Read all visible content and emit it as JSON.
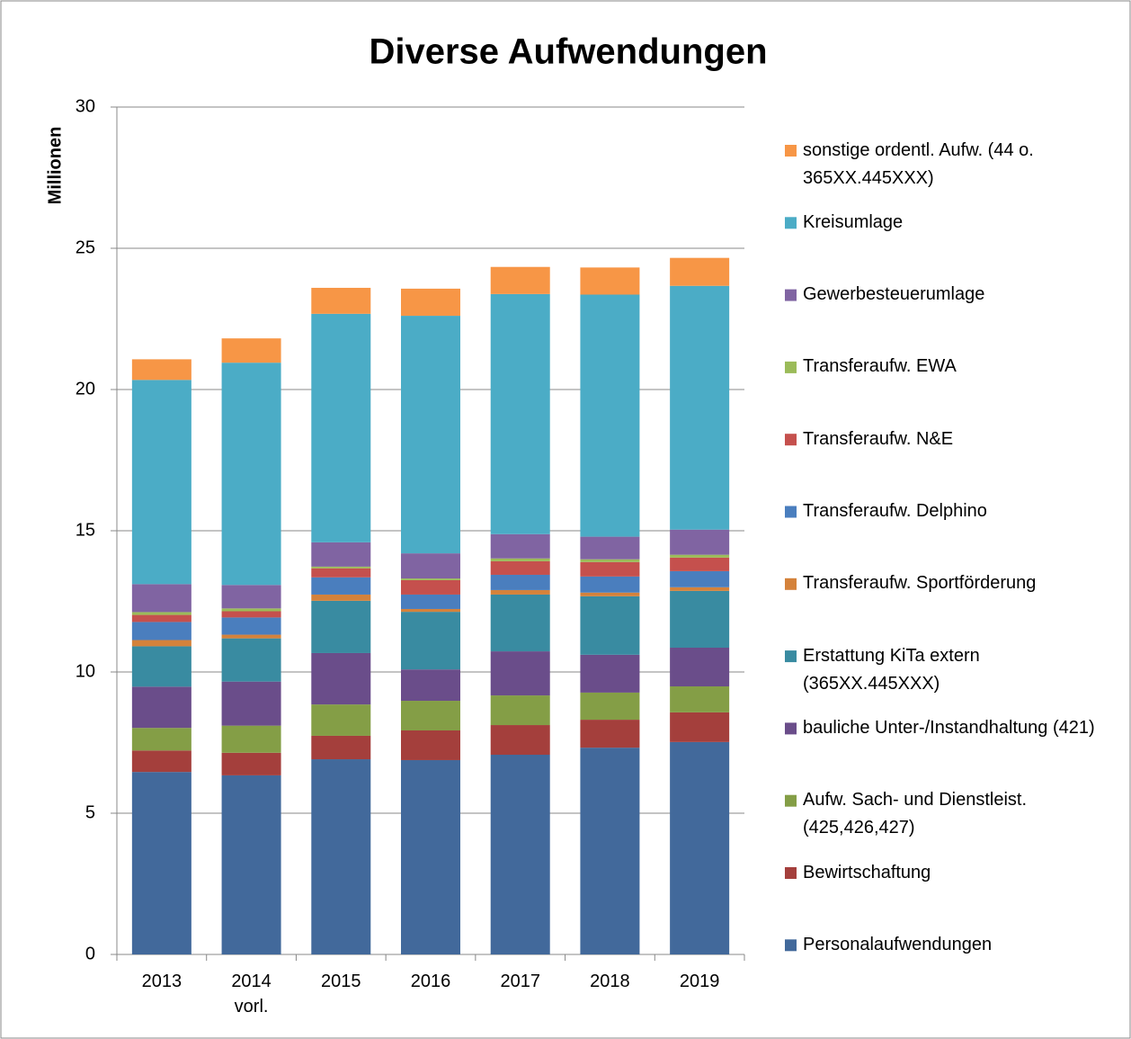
{
  "chart_data": {
    "type": "stacked_bar",
    "title": "Diverse Aufwendungen",
    "y_label": "Millionen",
    "categories": [
      "2013",
      "2014 vorl.",
      "2015",
      "2016",
      "2017",
      "2018",
      "2019"
    ],
    "ylim": [
      0,
      30
    ],
    "yticks": [
      0,
      5,
      10,
      15,
      20,
      25,
      30
    ],
    "grid": true,
    "legend": "right",
    "series": [
      {
        "name": "Personalaufwendungen",
        "color": "#42699b",
        "values": [
          6.46,
          6.34,
          6.91,
          6.88,
          7.07,
          7.32,
          7.52
        ]
      },
      {
        "name": "Bewirtschaftung",
        "color": "#a43f3c",
        "values": [
          0.76,
          0.8,
          0.83,
          1.05,
          1.05,
          0.99,
          1.05
        ]
      },
      {
        "name": "Aufw. Sach- und Dienstleist. (425,426,427)",
        "color": "#849e46",
        "values": [
          0.8,
          0.96,
          1.11,
          1.05,
          1.05,
          0.96,
          0.92
        ]
      },
      {
        "name": "bauliche Unter-/Instandhaltung (421)",
        "color": "#6a4d8a",
        "values": [
          1.46,
          1.56,
          1.82,
          1.11,
          1.56,
          1.34,
          1.37
        ]
      },
      {
        "name": "Erstattung KiTa extern (365XX.445XXX)",
        "color": "#398ba1",
        "values": [
          1.43,
          1.53,
          1.85,
          2.04,
          2.01,
          2.07,
          2.01
        ]
      },
      {
        "name": "Transferaufw. Sportförderung",
        "color": "#d4823b",
        "values": [
          0.22,
          0.13,
          0.22,
          0.1,
          0.16,
          0.13,
          0.13
        ]
      },
      {
        "name": "Transferaufw. Delphino",
        "color": "#4a7ebe",
        "values": [
          0.64,
          0.61,
          0.61,
          0.51,
          0.54,
          0.57,
          0.57
        ]
      },
      {
        "name": "Transferaufw. N&E",
        "color": "#c5504d",
        "values": [
          0.25,
          0.22,
          0.32,
          0.51,
          0.48,
          0.51,
          0.48
        ]
      },
      {
        "name": "Transferaufw. EWA",
        "color": "#9bbb59",
        "values": [
          0.1,
          0.1,
          0.06,
          0.06,
          0.1,
          0.1,
          0.1
        ]
      },
      {
        "name": "Gewerbesteuerumlage",
        "color": "#8064a2",
        "values": [
          0.99,
          0.83,
          0.86,
          0.89,
          0.86,
          0.8,
          0.89
        ]
      },
      {
        "name": "Kreisumlage",
        "color": "#4bacc6",
        "values": [
          7.23,
          7.87,
          8.09,
          8.41,
          8.5,
          8.57,
          8.63
        ]
      },
      {
        "name": "sonstige ordentl. Aufw. (44 o. 365XX.445XXX)",
        "color": "#f79646",
        "values": [
          0.73,
          0.86,
          0.92,
          0.96,
          0.96,
          0.96,
          0.99
        ]
      }
    ]
  }
}
